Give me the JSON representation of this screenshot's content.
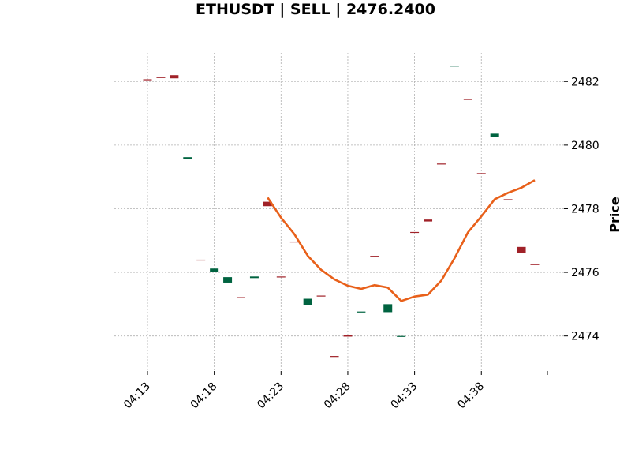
{
  "chart_data": {
    "type": "candlestick",
    "title": "ETHUSDT | SELL | 2476.2400",
    "xlabel": "",
    "ylabel": "Price",
    "ylim": [
      2472.9,
      2482.9
    ],
    "yticks": [
      2474,
      2476,
      2478,
      2480,
      2482
    ],
    "xticks": [
      "04:13",
      "04:18",
      "04:23",
      "04:28",
      "04:33",
      "04:38"
    ],
    "grid": true,
    "colors": {
      "up": "#006340",
      "down": "#a02128",
      "line": "#e8601a"
    },
    "candles": [
      {
        "t": "04:13",
        "open": 2482.07,
        "close": 2482.05
      },
      {
        "t": "04:14",
        "open": 2482.14,
        "close": 2482.12
      },
      {
        "t": "04:15",
        "open": 2482.2,
        "close": 2482.1
      },
      {
        "t": "04:16",
        "open": 2479.55,
        "close": 2479.62
      },
      {
        "t": "04:17",
        "open": 2476.4,
        "close": 2476.38
      },
      {
        "t": "04:18",
        "open": 2476.02,
        "close": 2476.12
      },
      {
        "t": "04:19",
        "open": 2475.68,
        "close": 2475.85
      },
      {
        "t": "04:20",
        "open": 2475.22,
        "close": 2475.2
      },
      {
        "t": "04:21",
        "open": 2475.82,
        "close": 2475.87
      },
      {
        "t": "04:22",
        "open": 2478.22,
        "close": 2478.08
      },
      {
        "t": "04:23",
        "open": 2475.87,
        "close": 2475.85
      },
      {
        "t": "04:24",
        "open": 2476.97,
        "close": 2476.95
      },
      {
        "t": "04:25",
        "open": 2474.97,
        "close": 2475.17
      },
      {
        "t": "04:26",
        "open": 2475.27,
        "close": 2475.25
      },
      {
        "t": "04:27",
        "open": 2473.37,
        "close": 2473.35
      },
      {
        "t": "04:28",
        "open": 2474.02,
        "close": 2473.98
      },
      {
        "t": "04:29",
        "open": 2474.75,
        "close": 2474.77
      },
      {
        "t": "04:30",
        "open": 2476.52,
        "close": 2476.5
      },
      {
        "t": "04:31",
        "open": 2474.75,
        "close": 2475.0
      },
      {
        "t": "04:32",
        "open": 2473.98,
        "close": 2474.0
      },
      {
        "t": "04:33",
        "open": 2477.27,
        "close": 2477.25
      },
      {
        "t": "04:34",
        "open": 2477.66,
        "close": 2477.6
      },
      {
        "t": "04:35",
        "open": 2479.42,
        "close": 2479.4
      },
      {
        "t": "04:36",
        "open": 2482.48,
        "close": 2482.5
      },
      {
        "t": "04:37",
        "open": 2481.45,
        "close": 2481.43
      },
      {
        "t": "04:38",
        "open": 2479.12,
        "close": 2479.08
      },
      {
        "t": "04:39",
        "open": 2480.26,
        "close": 2480.36
      },
      {
        "t": "04:40",
        "open": 2478.3,
        "close": 2478.28
      },
      {
        "t": "04:41",
        "open": 2476.8,
        "close": 2476.6
      },
      {
        "t": "04:42",
        "open": 2476.26,
        "close": 2476.24
      }
    ],
    "series": [
      {
        "type": "line",
        "start": "04:22",
        "values": [
          2478.35,
          2477.72,
          2477.2,
          2476.52,
          2476.08,
          2475.78,
          2475.58,
          2475.48,
          2475.6,
          2475.52,
          2475.1,
          2475.24,
          2475.3,
          2475.74,
          2476.45,
          2477.26,
          2477.76,
          2478.3,
          2478.5,
          2478.66,
          2478.9
        ]
      }
    ]
  }
}
